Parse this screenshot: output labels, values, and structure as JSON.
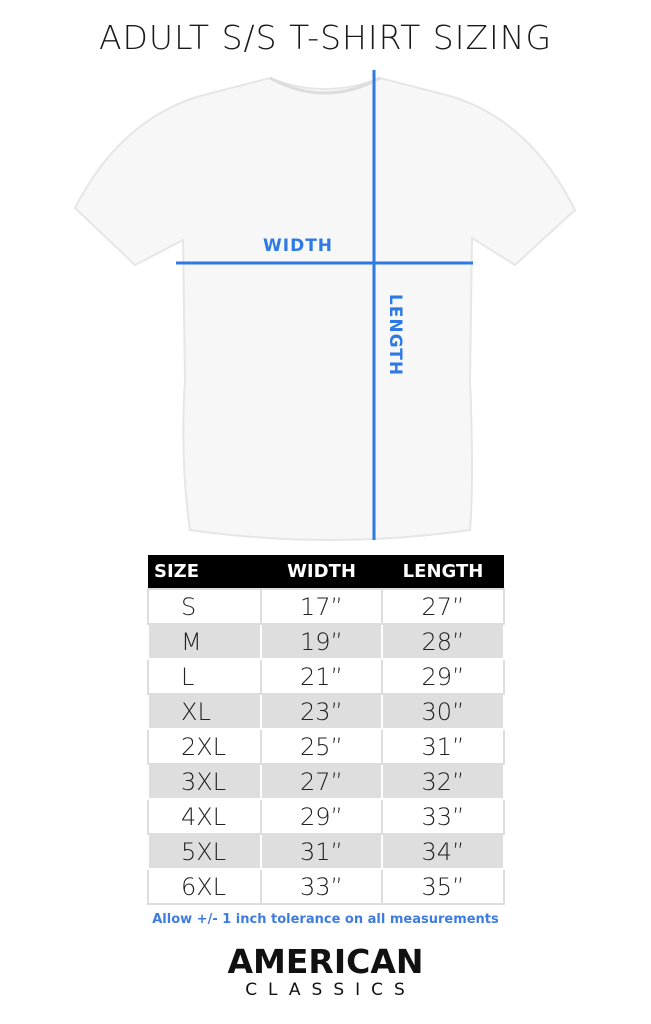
{
  "title": "ADULT S/S T-SHIRT SIZING",
  "diagram": {
    "width_label": "WIDTH",
    "length_label": "LENGTH",
    "line_color": "#2d7ae6"
  },
  "table": {
    "headers": [
      "SIZE",
      "WIDTH",
      "LENGTH"
    ],
    "rows": [
      [
        "S",
        "17”",
        "27”"
      ],
      [
        "M",
        "19”",
        "28”"
      ],
      [
        "L",
        "21”",
        "29”"
      ],
      [
        "XL",
        "23”",
        "30”"
      ],
      [
        "2XL",
        "25”",
        "31”"
      ],
      [
        "3XL",
        "27”",
        "32”"
      ],
      [
        "4XL",
        "29”",
        "33”"
      ],
      [
        "5XL",
        "31”",
        "34”"
      ],
      [
        "6XL",
        "33”",
        "35”"
      ]
    ]
  },
  "note": "Allow +/- 1 inch tolerance on all measurements",
  "brand": {
    "line1": "AMERICAN",
    "line2": "CLASSICS"
  }
}
